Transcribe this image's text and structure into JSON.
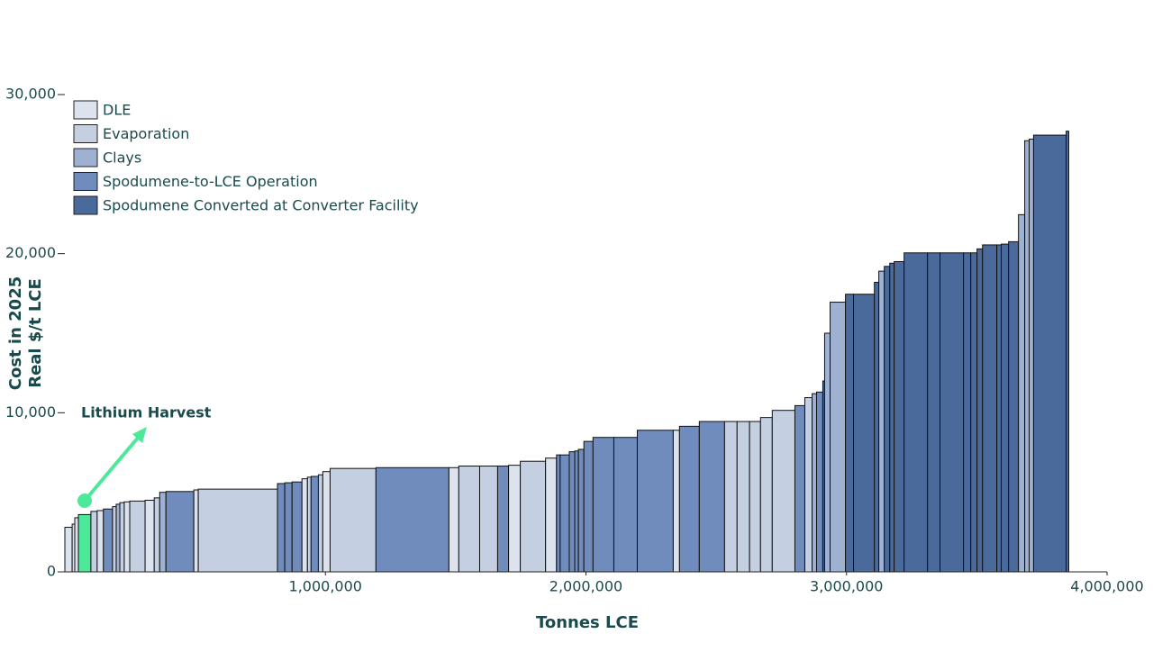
{
  "chart_data": {
    "type": "cost_curve",
    "xlabel": "Tonnes LCE",
    "ylabel": [
      "Cost in 2025",
      "Real $/t LCE"
    ],
    "xlim": [
      0,
      4000000
    ],
    "xticks": [
      {
        "value": 1000000,
        "label": "1,000,000"
      },
      {
        "value": 2000000,
        "label": "2,000,000"
      },
      {
        "value": 3000000,
        "label": "3,000,000"
      },
      {
        "value": 4000000,
        "label": "4,000,000"
      }
    ],
    "ylim": [
      0,
      30000
    ],
    "yticks": [
      0,
      {
        "value": 10000,
        "label": "10,000"
      },
      {
        "value": 20000,
        "label": "20,000"
      },
      {
        "value": 30000,
        "label": "30,000"
      }
    ],
    "legend": "top-left",
    "series": [
      {
        "name": "DLE",
        "color": "#dde3ee"
      },
      {
        "name": "Evaporation",
        "color": "#c4cfe1"
      },
      {
        "name": "Clays",
        "color": "#9fb1d0"
      },
      {
        "name": "Spodumene-to-LCE Operation",
        "color": "#6f8cbc"
      },
      {
        "name": "Spodumene Converted at Converter Facility",
        "color": "#4b6a9c"
      }
    ],
    "values": [
      2800,
      3000,
      3400,
      3600,
      3800,
      3850,
      3950,
      4100,
      4250,
      4350,
      4400,
      4450,
      4500,
      4650,
      5000,
      5050,
      5150,
      5200,
      5550,
      5600,
      5650,
      5850,
      5950,
      6000,
      6100,
      6300,
      6500,
      6550,
      6550,
      6650,
      6650,
      6650,
      6700,
      6950,
      7150,
      7350,
      7350,
      7550,
      7600,
      7700,
      8200,
      8450,
      8450,
      8900,
      8900,
      9150,
      9450,
      9450,
      9450,
      9450,
      9700,
      10150,
      10450,
      10950,
      11200,
      11300,
      12000,
      15000,
      16950,
      17450,
      17450,
      18200,
      18900,
      19200,
      19400,
      19500,
      20050,
      20050,
      20050,
      20050,
      20050,
      20300,
      20550,
      20550,
      20600,
      20750,
      22450,
      27100,
      27200,
      27450,
      27700
    ],
    "widths": [
      28000,
      10000,
      14000,
      48000,
      24000,
      24000,
      35000,
      14000,
      14000,
      17000,
      21000,
      59000,
      35000,
      21000,
      24000,
      107000,
      17000,
      304000,
      28000,
      28000,
      38000,
      21000,
      14000,
      28000,
      17000,
      28000,
      176000,
      280000,
      38000,
      80000,
      69000,
      42000,
      45000,
      97000,
      42000,
      14000,
      35000,
      21000,
      14000,
      21000,
      35000,
      80000,
      90000,
      138000,
      24000,
      76000,
      97000,
      48000,
      48000,
      42000,
      45000,
      87000,
      38000,
      28000,
      17000,
      24000,
      7000,
      21000,
      59000,
      31000,
      80000,
      17000,
      21000,
      21000,
      17000,
      38000,
      90000,
      48000,
      90000,
      28000,
      24000,
      21000,
      55000,
      17000,
      28000,
      38000,
      24000,
      17000,
      17000,
      125000,
      10000
    ],
    "series_index": [
      0,
      0,
      0,
      0,
      1,
      0,
      3,
      1,
      2,
      1,
      0,
      1,
      0,
      1,
      2,
      3,
      0,
      1,
      3,
      3,
      3,
      0,
      1,
      3,
      1,
      0,
      1,
      3,
      0,
      1,
      1,
      3,
      0,
      1,
      0,
      3,
      3,
      3,
      3,
      3,
      3,
      3,
      3,
      3,
      0,
      3,
      3,
      1,
      1,
      1,
      1,
      1,
      3,
      1,
      2,
      3,
      4,
      2,
      2,
      4,
      4,
      4,
      2,
      4,
      4,
      4,
      4,
      4,
      4,
      4,
      4,
      4,
      4,
      4,
      4,
      4,
      2,
      2,
      2,
      4,
      4
    ],
    "highlight": {
      "index": 3,
      "color": "#4ee89b",
      "label": "Lithium Harvest"
    }
  }
}
